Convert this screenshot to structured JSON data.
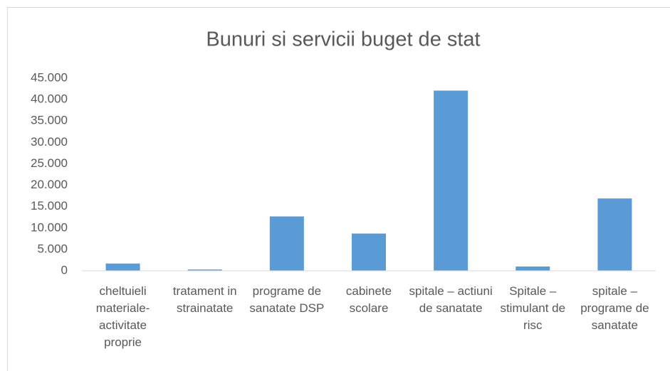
{
  "chart_data": {
    "type": "bar",
    "title": "Bunuri si servicii buget de stat",
    "categories": [
      "cheltuieli materiale-activitate proprie",
      "tratament in strainatate",
      "programe de sanatate DSP",
      "cabinete scolare",
      "spitale – actiuni de sanatate",
      "Spitale – stimulant de risc",
      "spitale – programe de sanatate"
    ],
    "values": [
      1700,
      300,
      12700,
      8700,
      42100,
      1000,
      16900
    ],
    "color": "#5b9bd5",
    "ylim": [
      0,
      45000
    ],
    "yticks": [
      0,
      {
        "value": 5000,
        "label": "5.000"
      },
      {
        "value": 10000,
        "label": "10.000"
      },
      {
        "value": 15000,
        "label": "15.000"
      },
      {
        "value": 20000,
        "label": "20.000"
      },
      {
        "value": 25000,
        "label": "25.000"
      },
      {
        "value": 30000,
        "label": "30.000"
      },
      {
        "value": 35000,
        "label": "35.000"
      },
      {
        "value": 40000,
        "label": "40.000"
      },
      {
        "value": 45000,
        "label": "45.000"
      }
    ],
    "grid": false
  }
}
